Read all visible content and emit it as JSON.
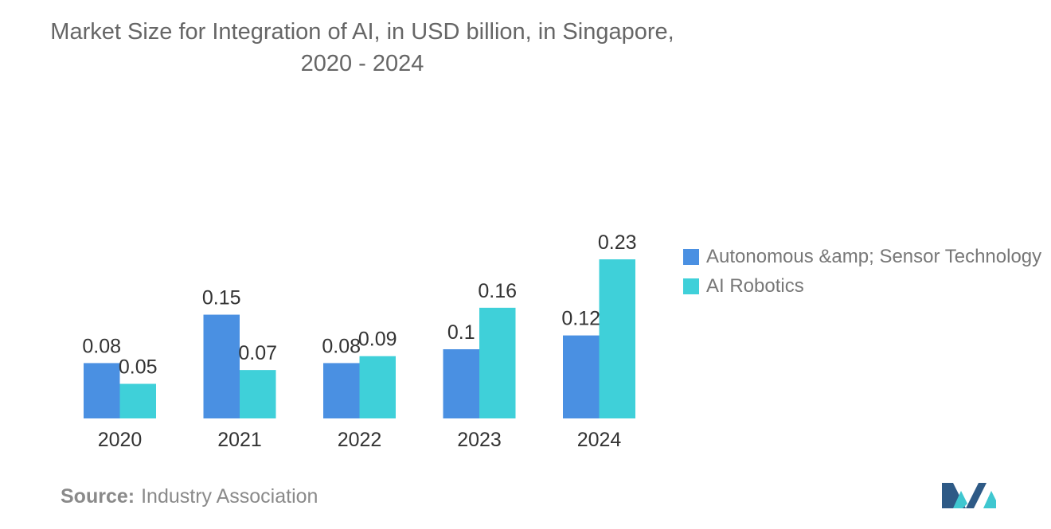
{
  "chart_data": {
    "type": "bar",
    "title": "Market Size for Integration of AI, in USD billion, in Singapore, 2020 - 2024",
    "categories": [
      "2020",
      "2021",
      "2022",
      "2023",
      "2024"
    ],
    "series": [
      {
        "name": "Autonomous &amp; Sensor Technology",
        "values": [
          0.08,
          0.15,
          0.08,
          0.1,
          0.12
        ],
        "labels": [
          "0.08",
          "0.15",
          "0.08",
          "0.1",
          "0.12"
        ],
        "color": "#4a90e2"
      },
      {
        "name": "AI Robotics",
        "values": [
          0.05,
          0.07,
          0.09,
          0.16,
          0.23
        ],
        "labels": [
          "0.05",
          "0.07",
          "0.09",
          "0.16",
          "0.23"
        ],
        "color": "#3fd0d9"
      }
    ],
    "xlabel": "",
    "ylabel": "",
    "ylim": [
      0,
      0.23
    ],
    "grid": false,
    "legend": "right"
  },
  "source": {
    "label": "Source:",
    "text": "Industry Association"
  }
}
